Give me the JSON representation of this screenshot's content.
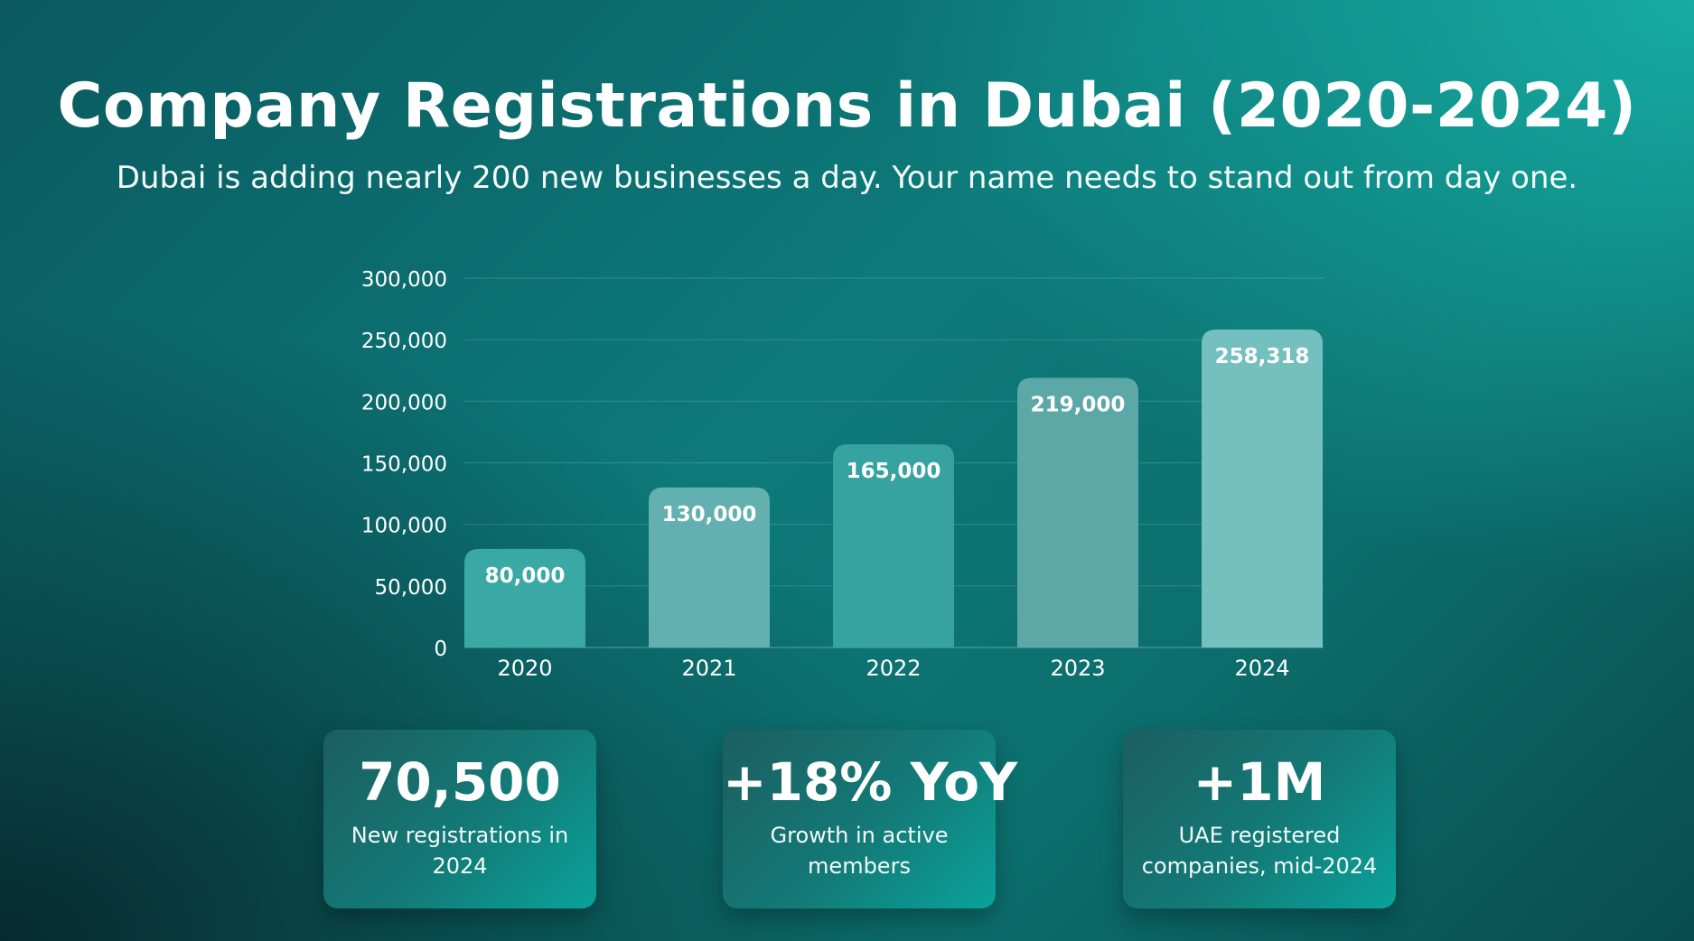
{
  "header": {
    "title": "Company Registrations in Dubai (2020-2024)",
    "subtitle": "Dubai is adding nearly 200 new businesses a day. Your name needs to stand out from day one."
  },
  "chart_data": {
    "type": "bar",
    "categories": [
      "2020",
      "2021",
      "2022",
      "2023",
      "2024"
    ],
    "values": [
      80000,
      130000,
      165000,
      219000,
      258318
    ],
    "data_labels": [
      "80,000",
      "130,000",
      "165,000",
      "219,000",
      "258,318"
    ],
    "y_ticks": [
      0,
      50000,
      100000,
      150000,
      200000,
      250000,
      300000
    ],
    "y_tick_labels": [
      "0",
      "50,000",
      "100,000",
      "150,000",
      "200,000",
      "250,000",
      "300,000"
    ],
    "ylim": [
      0,
      300000
    ],
    "grid": true,
    "bar_colors": [
      "#3aa9a6",
      "#62b1b0",
      "#36a3a1",
      "#5ba8a6",
      "#73c0be"
    ]
  },
  "stats": [
    {
      "value": "70,500",
      "description": "New registrations in 2024"
    },
    {
      "value": "+18% YoY",
      "description": "Growth in active members"
    },
    {
      "value": "+1M",
      "description": "UAE registered companies, mid-2024"
    }
  ]
}
